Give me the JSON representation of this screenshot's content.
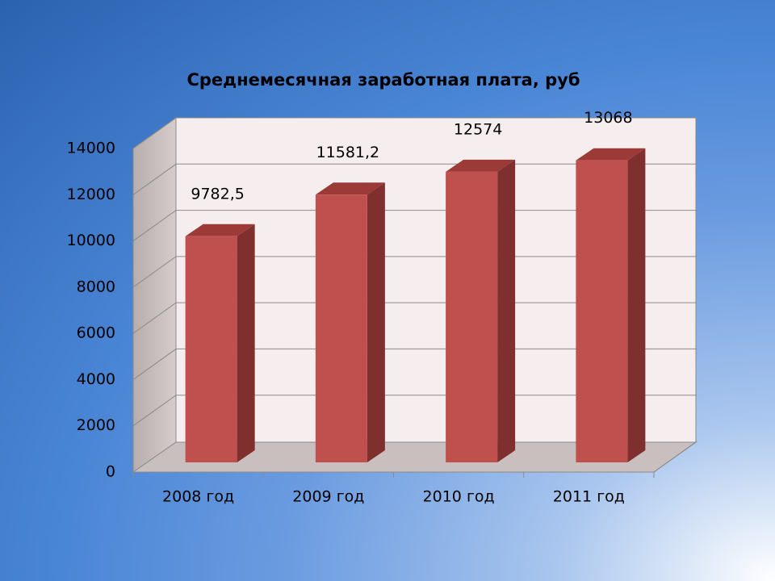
{
  "chart_data": {
    "type": "bar3d",
    "title": "Среднемесячная заработная плата, руб",
    "categories": [
      "2008 год",
      "2009 год",
      "2010 год",
      "2011 год"
    ],
    "values": [
      9782.5,
      11581.2,
      12574,
      13068
    ],
    "value_labels": [
      "9782,5",
      "11581,2",
      "12574",
      "13068"
    ],
    "color": "#c0504d",
    "ylim": [
      0,
      14000
    ],
    "yticks": [
      0,
      2000,
      4000,
      6000,
      8000,
      10000,
      12000,
      14000
    ],
    "grid": true
  }
}
